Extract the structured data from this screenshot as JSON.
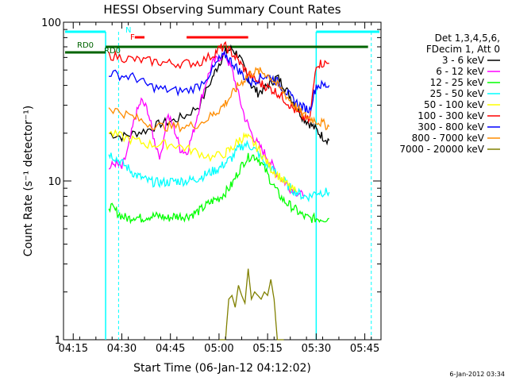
{
  "chart_data": {
    "type": "line",
    "title": "HESSI Observing Summary Count Rates",
    "xlabel": "Start Time (06-Jan-12 04:12:02)",
    "ylabel": "Count Rate (s⁻¹ detector⁻¹)",
    "y_scale": "log",
    "ylim": [
      1,
      100
    ],
    "xlim_minutes": [
      0,
      98
    ],
    "x_ticks": [
      {
        "t": 3,
        "label": "04:15"
      },
      {
        "t": 18,
        "label": "04:30"
      },
      {
        "t": 33,
        "label": "04:45"
      },
      {
        "t": 48,
        "label": "05:00"
      },
      {
        "t": 63,
        "label": "05:15"
      },
      {
        "t": 78,
        "label": "05:30"
      },
      {
        "t": 93,
        "label": "05:45"
      }
    ],
    "y_ticks": [
      {
        "v": 1,
        "label": "1"
      },
      {
        "v": 10,
        "label": "10"
      },
      {
        "v": 100,
        "label": "100"
      }
    ],
    "legend_header": [
      "Det 1,3,4,5,6,",
      "FDecim 1, Att 0"
    ],
    "legend_position": "right",
    "series": [
      {
        "name": "3 - 6 keV",
        "color": "#000000",
        "points": [
          [
            14,
            20
          ],
          [
            18,
            19
          ],
          [
            22,
            20
          ],
          [
            26,
            21
          ],
          [
            30,
            23
          ],
          [
            34,
            24
          ],
          [
            38,
            26
          ],
          [
            42,
            30
          ],
          [
            46,
            45
          ],
          [
            48,
            55
          ],
          [
            50,
            65
          ],
          [
            52,
            68
          ],
          [
            54,
            62
          ],
          [
            56,
            50
          ],
          [
            58,
            40
          ],
          [
            60,
            36
          ],
          [
            62,
            38
          ],
          [
            64,
            42
          ],
          [
            66,
            45
          ],
          [
            68,
            40
          ],
          [
            70,
            34
          ],
          [
            72,
            29
          ],
          [
            74,
            25
          ],
          [
            76,
            23
          ],
          [
            78,
            21
          ],
          [
            80,
            19
          ],
          [
            82,
            18
          ]
        ]
      },
      {
        "name": "6 - 12 keV",
        "color": "#ff00ff",
        "points": [
          [
            14,
            12
          ],
          [
            16,
            13
          ],
          [
            18,
            12
          ],
          [
            20,
            16
          ],
          [
            22,
            25
          ],
          [
            24,
            32
          ],
          [
            26,
            28
          ],
          [
            28,
            18
          ],
          [
            30,
            14
          ],
          [
            32,
            26
          ],
          [
            34,
            22
          ],
          [
            36,
            16
          ],
          [
            38,
            15
          ],
          [
            40,
            20
          ],
          [
            42,
            30
          ],
          [
            44,
            42
          ],
          [
            46,
            55
          ],
          [
            48,
            60
          ],
          [
            50,
            62
          ],
          [
            52,
            50
          ],
          [
            54,
            35
          ],
          [
            56,
            25
          ],
          [
            58,
            20
          ],
          [
            60,
            17
          ],
          [
            62,
            15
          ],
          [
            64,
            13
          ],
          [
            66,
            11
          ],
          [
            68,
            10
          ],
          [
            70,
            9
          ],
          [
            72,
            8.5
          ],
          [
            74,
            8
          ]
        ]
      },
      {
        "name": "12 - 25 keV",
        "color": "#00ff00",
        "points": [
          [
            14,
            7
          ],
          [
            16,
            6.5
          ],
          [
            18,
            6
          ],
          [
            20,
            5.8
          ],
          [
            22,
            6
          ],
          [
            24,
            5.8
          ],
          [
            26,
            6
          ],
          [
            28,
            6
          ],
          [
            30,
            6
          ],
          [
            32,
            5.8
          ],
          [
            34,
            6
          ],
          [
            36,
            6
          ],
          [
            38,
            6
          ],
          [
            40,
            6.2
          ],
          [
            42,
            6.5
          ],
          [
            44,
            7
          ],
          [
            46,
            7.5
          ],
          [
            48,
            7.8
          ],
          [
            50,
            8.5
          ],
          [
            52,
            9.5
          ],
          [
            54,
            11.5
          ],
          [
            56,
            13.5
          ],
          [
            58,
            14.5
          ],
          [
            60,
            14
          ],
          [
            62,
            12
          ],
          [
            64,
            10
          ],
          [
            66,
            8.5
          ],
          [
            68,
            7.5
          ],
          [
            70,
            7
          ],
          [
            72,
            6.5
          ],
          [
            74,
            6
          ],
          [
            76,
            5.8
          ],
          [
            78,
            5.8
          ],
          [
            80,
            5.8
          ],
          [
            82,
            5.8
          ]
        ]
      },
      {
        "name": "25 - 50 keV",
        "color": "#00ffff",
        "points": [
          [
            14,
            15
          ],
          [
            16,
            14
          ],
          [
            18,
            13
          ],
          [
            20,
            12
          ],
          [
            22,
            11
          ],
          [
            24,
            10.5
          ],
          [
            26,
            10
          ],
          [
            28,
            9.8
          ],
          [
            30,
            9.8
          ],
          [
            32,
            9.8
          ],
          [
            34,
            10
          ],
          [
            36,
            10
          ],
          [
            38,
            10
          ],
          [
            40,
            10.2
          ],
          [
            42,
            10.5
          ],
          [
            44,
            11
          ],
          [
            46,
            11.5
          ],
          [
            48,
            12
          ],
          [
            50,
            13
          ],
          [
            52,
            14
          ],
          [
            54,
            16
          ],
          [
            56,
            17
          ],
          [
            58,
            16.5
          ],
          [
            60,
            15
          ],
          [
            62,
            13
          ],
          [
            64,
            12
          ],
          [
            66,
            11
          ],
          [
            68,
            10
          ],
          [
            70,
            9
          ],
          [
            72,
            8.5
          ],
          [
            74,
            8
          ],
          [
            76,
            8
          ],
          [
            78,
            8.5
          ],
          [
            80,
            8.5
          ],
          [
            82,
            8.5
          ]
        ]
      },
      {
        "name": "50 - 100 keV",
        "color": "#ffff00",
        "points": [
          [
            14,
            20
          ],
          [
            18,
            19
          ],
          [
            22,
            18
          ],
          [
            26,
            17
          ],
          [
            30,
            17
          ],
          [
            34,
            17
          ],
          [
            38,
            16
          ],
          [
            42,
            15
          ],
          [
            46,
            14
          ],
          [
            50,
            15
          ],
          [
            52,
            16
          ],
          [
            54,
            18
          ],
          [
            56,
            19
          ],
          [
            58,
            18
          ],
          [
            60,
            16
          ],
          [
            62,
            14
          ],
          [
            64,
            12
          ],
          [
            66,
            11
          ],
          [
            68,
            10
          ],
          [
            70,
            9
          ],
          [
            72,
            8.5
          ]
        ]
      },
      {
        "name": "100 - 300 keV",
        "color": "#ff0000",
        "points": [
          [
            14,
            62
          ],
          [
            18,
            60
          ],
          [
            22,
            58
          ],
          [
            26,
            57
          ],
          [
            30,
            56
          ],
          [
            34,
            55
          ],
          [
            38,
            55
          ],
          [
            42,
            56
          ],
          [
            46,
            62
          ],
          [
            48,
            68
          ],
          [
            50,
            70
          ],
          [
            52,
            64
          ],
          [
            54,
            57
          ],
          [
            56,
            50
          ],
          [
            58,
            45
          ],
          [
            60,
            42
          ],
          [
            62,
            40
          ],
          [
            64,
            38
          ],
          [
            66,
            36
          ],
          [
            68,
            33
          ],
          [
            70,
            30
          ],
          [
            72,
            27
          ],
          [
            74,
            25
          ],
          [
            76,
            24
          ],
          [
            78,
            55
          ],
          [
            80,
            55
          ],
          [
            82,
            55
          ]
        ]
      },
      {
        "name": "300 - 800 keV",
        "color": "#0000ff",
        "points": [
          [
            14,
            48
          ],
          [
            18,
            46
          ],
          [
            22,
            45
          ],
          [
            26,
            40
          ],
          [
            30,
            38
          ],
          [
            34,
            37
          ],
          [
            38,
            37
          ],
          [
            42,
            40
          ],
          [
            46,
            50
          ],
          [
            48,
            58
          ],
          [
            50,
            62
          ],
          [
            52,
            56
          ],
          [
            54,
            50
          ],
          [
            56,
            45
          ],
          [
            58,
            42
          ],
          [
            60,
            44
          ],
          [
            62,
            46
          ],
          [
            64,
            45
          ],
          [
            66,
            42
          ],
          [
            68,
            38
          ],
          [
            70,
            34
          ],
          [
            72,
            31
          ],
          [
            74,
            29
          ],
          [
            76,
            28
          ],
          [
            78,
            40
          ],
          [
            80,
            40
          ],
          [
            82,
            40
          ]
        ]
      },
      {
        "name": "800 - 7000 keV",
        "color": "#ff8c00",
        "points": [
          [
            14,
            29
          ],
          [
            18,
            27
          ],
          [
            22,
            25
          ],
          [
            26,
            23
          ],
          [
            30,
            22
          ],
          [
            34,
            22
          ],
          [
            38,
            22
          ],
          [
            42,
            23
          ],
          [
            46,
            26
          ],
          [
            48,
            28
          ],
          [
            50,
            31
          ],
          [
            52,
            35
          ],
          [
            54,
            40
          ],
          [
            56,
            44
          ],
          [
            58,
            48
          ],
          [
            60,
            49
          ],
          [
            62,
            48
          ],
          [
            64,
            45
          ],
          [
            66,
            40
          ],
          [
            68,
            36
          ],
          [
            70,
            32
          ],
          [
            72,
            29
          ],
          [
            74,
            26
          ],
          [
            76,
            25
          ],
          [
            78,
            24
          ],
          [
            80,
            23
          ],
          [
            82,
            22
          ]
        ]
      },
      {
        "name": "7000 - 20000 keV",
        "color": "#808000",
        "points": [
          [
            48,
            1
          ],
          [
            50,
            1
          ],
          [
            51,
            1.8
          ],
          [
            52,
            1.9
          ],
          [
            53,
            1.6
          ],
          [
            54,
            2.2
          ],
          [
            55,
            1.9
          ],
          [
            56,
            1.7
          ],
          [
            57,
            2.8
          ],
          [
            58,
            1.8
          ],
          [
            59,
            2.0
          ],
          [
            60,
            1.9
          ],
          [
            61,
            1.8
          ],
          [
            62,
            2.0
          ],
          [
            63,
            1.9
          ],
          [
            64,
            2.4
          ],
          [
            65,
            1.8
          ],
          [
            66,
            1
          ],
          [
            68,
            1
          ]
        ]
      }
    ],
    "annotations": [
      {
        "text": "N",
        "color": "#00ffff"
      },
      {
        "text": "F",
        "color": "#ff0000"
      },
      {
        "text": "RD0",
        "color": "#006400"
      },
      {
        "text": "RD0",
        "color": "#006400"
      }
    ],
    "footer_date": "6-Jan-2012 03:34"
  }
}
